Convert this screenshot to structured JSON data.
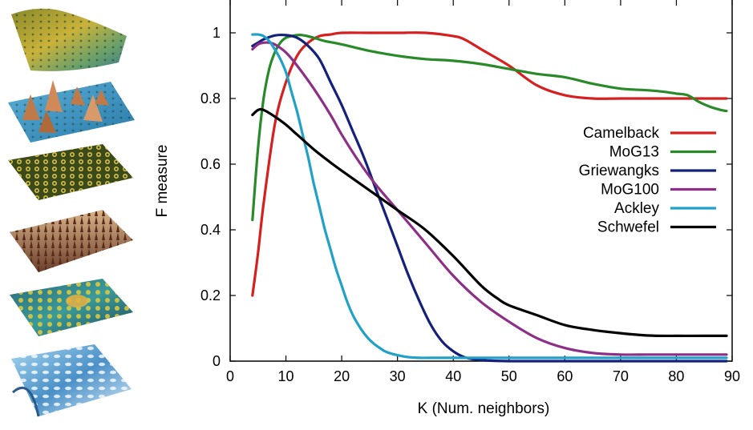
{
  "chart_data": {
    "type": "line",
    "xlabel": "K (Num. neighbors)",
    "ylabel": "F measure",
    "xlim": [
      0,
      90
    ],
    "ylim": [
      0,
      1.1
    ],
    "xticks": [
      "0",
      "10",
      "20",
      "30",
      "40",
      "50",
      "60",
      "70",
      "80",
      "90"
    ],
    "yticks": [
      "0",
      "0.2",
      "0.4",
      "0.6",
      "0.8",
      "1"
    ],
    "grid": false,
    "legend_position": "right",
    "series": [
      {
        "name": "Camelback",
        "color": "#d62020",
        "x": [
          4,
          5,
          6,
          8,
          10,
          12,
          14,
          16,
          18,
          20,
          25,
          30,
          35,
          40,
          42,
          45,
          50,
          55,
          60,
          65,
          70,
          75,
          80,
          85,
          89
        ],
        "y": [
          0.2,
          0.33,
          0.48,
          0.72,
          0.85,
          0.93,
          0.97,
          0.99,
          0.995,
          1.0,
          1.0,
          1.0,
          1.0,
          0.99,
          0.98,
          0.95,
          0.9,
          0.84,
          0.81,
          0.8,
          0.8,
          0.8,
          0.8,
          0.8,
          0.8
        ]
      },
      {
        "name": "MoG13",
        "color": "#2a8a2a",
        "x": [
          4,
          5,
          6,
          7,
          8,
          9,
          10,
          11,
          12,
          13,
          15,
          17,
          20,
          25,
          30,
          35,
          40,
          45,
          50,
          55,
          60,
          65,
          70,
          75,
          78,
          80,
          82,
          84,
          86,
          88,
          89
        ],
        "y": [
          0.43,
          0.65,
          0.8,
          0.89,
          0.94,
          0.97,
          0.985,
          0.99,
          0.993,
          0.993,
          0.985,
          0.975,
          0.965,
          0.945,
          0.93,
          0.92,
          0.915,
          0.905,
          0.89,
          0.875,
          0.865,
          0.845,
          0.83,
          0.825,
          0.82,
          0.815,
          0.81,
          0.79,
          0.775,
          0.765,
          0.762
        ]
      },
      {
        "name": "Griewangks",
        "color": "#14207a",
        "x": [
          4,
          5,
          6,
          8,
          10,
          12,
          14,
          16,
          18,
          20,
          22,
          24,
          26,
          28,
          30,
          32,
          34,
          36,
          38,
          40,
          42,
          44,
          46,
          50,
          60,
          70,
          80,
          89
        ],
        "y": [
          0.96,
          0.97,
          0.98,
          0.992,
          0.993,
          0.985,
          0.96,
          0.92,
          0.85,
          0.78,
          0.7,
          0.62,
          0.53,
          0.44,
          0.35,
          0.26,
          0.18,
          0.11,
          0.06,
          0.03,
          0.012,
          0.005,
          0.002,
          0.0,
          0.0,
          0.0,
          0.0,
          0.0
        ]
      },
      {
        "name": "MoG100",
        "color": "#8e2f86",
        "x": [
          4,
          5,
          6,
          7,
          8,
          10,
          12,
          15,
          18,
          20,
          23,
          26,
          30,
          35,
          40,
          45,
          50,
          55,
          60,
          65,
          70,
          75,
          80,
          85,
          89
        ],
        "y": [
          0.95,
          0.965,
          0.97,
          0.97,
          0.965,
          0.94,
          0.9,
          0.83,
          0.75,
          0.69,
          0.61,
          0.54,
          0.46,
          0.36,
          0.26,
          0.18,
          0.12,
          0.07,
          0.04,
          0.025,
          0.02,
          0.02,
          0.02,
          0.02,
          0.02
        ]
      },
      {
        "name": "Ackley",
        "color": "#21a0c8",
        "x": [
          4,
          5,
          6,
          7,
          8,
          9,
          10,
          11,
          12,
          13,
          14,
          15,
          16,
          17,
          18,
          19,
          20,
          21,
          22,
          23,
          24,
          25,
          26,
          27,
          28,
          30,
          32,
          34,
          36,
          40,
          45,
          50,
          60,
          70,
          80,
          89
        ],
        "y": [
          0.995,
          0.995,
          0.99,
          0.975,
          0.95,
          0.92,
          0.88,
          0.82,
          0.76,
          0.69,
          0.62,
          0.54,
          0.47,
          0.4,
          0.34,
          0.28,
          0.23,
          0.18,
          0.14,
          0.11,
          0.085,
          0.065,
          0.05,
          0.038,
          0.028,
          0.018,
          0.012,
          0.01,
          0.01,
          0.01,
          0.01,
          0.01,
          0.01,
          0.01,
          0.01,
          0.01
        ]
      },
      {
        "name": "Schwefel",
        "color": "#000000",
        "x": [
          4,
          5,
          6,
          8,
          10,
          12,
          15,
          18,
          20,
          25,
          30,
          35,
          40,
          45,
          48,
          50,
          55,
          60,
          65,
          70,
          75,
          80,
          85,
          89
        ],
        "y": [
          0.75,
          0.765,
          0.765,
          0.745,
          0.72,
          0.69,
          0.645,
          0.605,
          0.58,
          0.52,
          0.46,
          0.4,
          0.32,
          0.23,
          0.19,
          0.17,
          0.14,
          0.11,
          0.095,
          0.085,
          0.078,
          0.077,
          0.077,
          0.077
        ]
      }
    ]
  }
}
